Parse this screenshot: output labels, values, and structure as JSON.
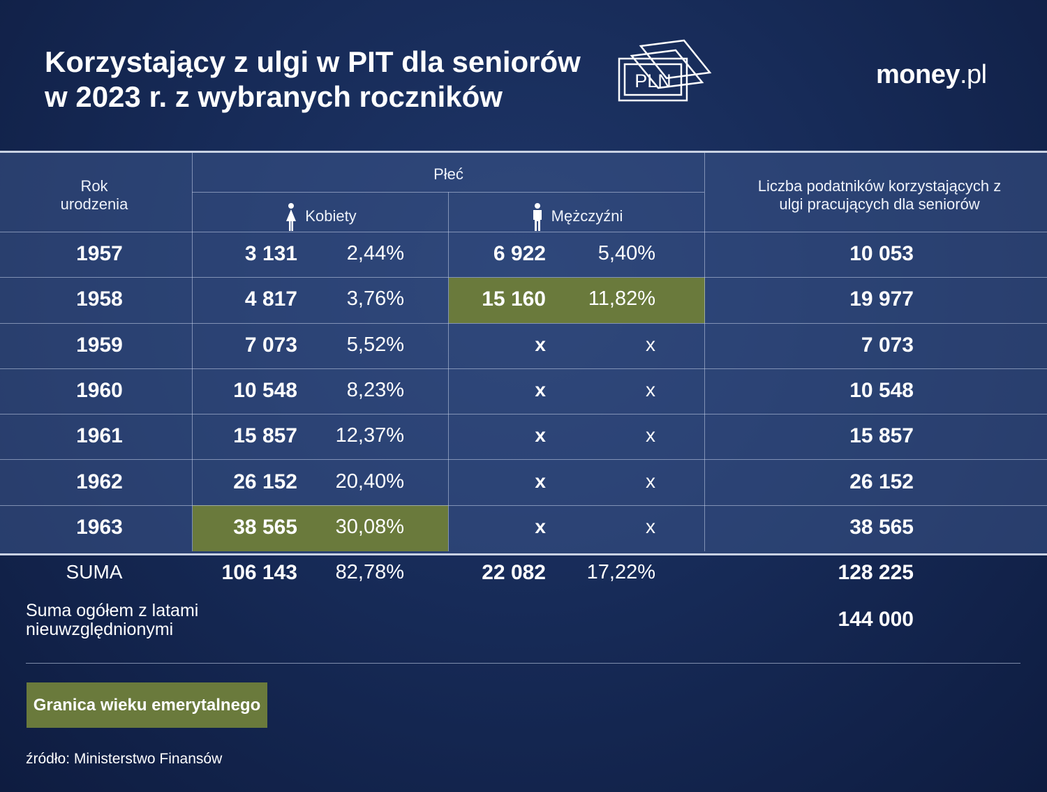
{
  "header": {
    "title_line1": "Korzystający z ulgi w PIT dla seniorów",
    "title_line2": "w 2023 r. z wybranych roczników",
    "icon_text": "PLN",
    "logo_bold": "money",
    "logo_light": ".pl"
  },
  "chart_data": {
    "type": "table",
    "title": "Korzystający z ulgi w PIT dla seniorów w 2023 r. z wybranych roczników",
    "columns": {
      "year": "Rok urodzenia",
      "sex_group": "Płeć",
      "women": "Kobiety",
      "men": "Mężczyźni",
      "total": "Liczba podatników korzystających z ulgi pracujących dla seniorów"
    },
    "rows": [
      {
        "year": "1957",
        "women": "3 131",
        "women_pct": "2,44%",
        "men": "6 922",
        "men_pct": "5,40%",
        "total": "10 053"
      },
      {
        "year": "1958",
        "women": "4 817",
        "women_pct": "3,76%",
        "men": "15 160",
        "men_pct": "11,82%",
        "total": "19 977",
        "highlight": "men"
      },
      {
        "year": "1959",
        "women": "7 073",
        "women_pct": "5,52%",
        "men": "x",
        "men_pct": "x",
        "total": "7 073"
      },
      {
        "year": "1960",
        "women": "10 548",
        "women_pct": "8,23%",
        "men": "x",
        "men_pct": "x",
        "total": "10 548"
      },
      {
        "year": "1961",
        "women": "15 857",
        "women_pct": "12,37%",
        "men": "x",
        "men_pct": "x",
        "total": "15 857"
      },
      {
        "year": "1962",
        "women": "26 152",
        "women_pct": "20,40%",
        "men": "x",
        "men_pct": "x",
        "total": "26 152"
      },
      {
        "year": "1963",
        "women": "38 565",
        "women_pct": "30,08%",
        "men": "x",
        "men_pct": "x",
        "total": "38 565",
        "highlight": "women"
      }
    ],
    "sum": {
      "label": "SUMA",
      "women": "106 143",
      "women_pct": "82,78%",
      "men": "22 082",
      "men_pct": "17,22%",
      "total": "128 225"
    },
    "grand_total": {
      "label": "Suma ogółem z latami nieuwzględnionymi",
      "value": "144 000"
    }
  },
  "legend": {
    "label": "Granica wieku emerytalnego",
    "color": "#6a7a3c"
  },
  "source": "źródło: Ministerstwo Finansów",
  "colors": {
    "background": "#172b58",
    "highlight": "#6a7a3c",
    "text": "#ffffff"
  }
}
